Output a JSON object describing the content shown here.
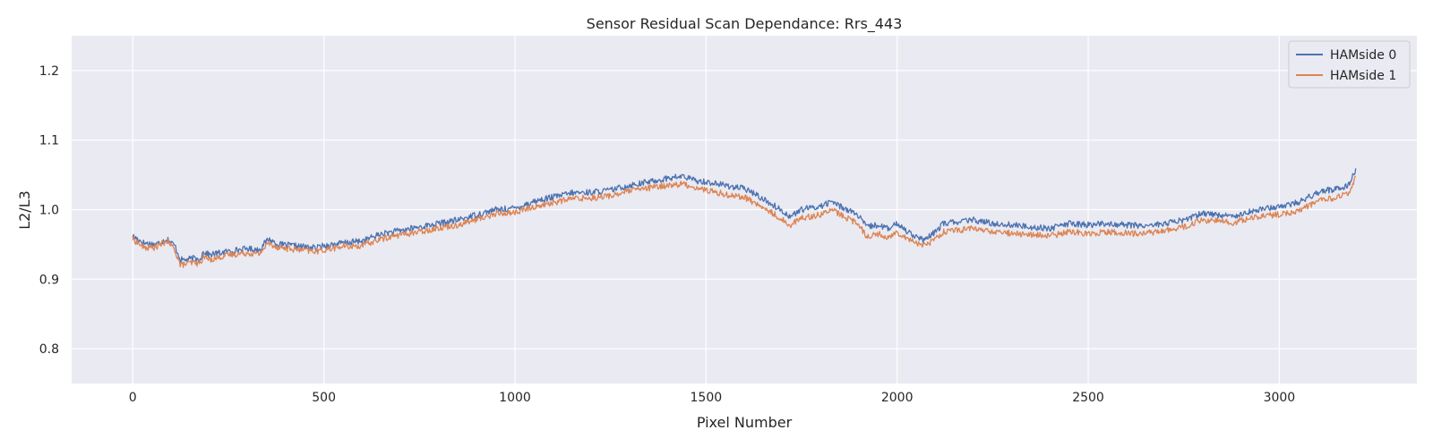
{
  "chart_data": {
    "type": "line",
    "title": "Sensor Residual Scan Dependance: Rrs_443",
    "xlabel": "Pixel Number",
    "ylabel": "L2/L3",
    "xlim": [
      -160,
      3360
    ],
    "ylim": [
      0.75,
      1.25
    ],
    "xticks": [
      0,
      500,
      1000,
      1500,
      2000,
      2500,
      3000
    ],
    "yticks": [
      0.8,
      0.9,
      1.0,
      1.1,
      1.2
    ],
    "grid": true,
    "legend_position": "top-right",
    "x_range": [
      0,
      3200
    ],
    "series": [
      {
        "name": "HAMside 0",
        "color": "#4c72b0",
        "points": [
          [
            0,
            0.962
          ],
          [
            30,
            0.952
          ],
          [
            60,
            0.95
          ],
          [
            90,
            0.958
          ],
          [
            110,
            0.948
          ],
          [
            125,
            0.928
          ],
          [
            140,
            0.928
          ],
          [
            160,
            0.93
          ],
          [
            175,
            0.928
          ],
          [
            185,
            0.94
          ],
          [
            200,
            0.935
          ],
          [
            250,
            0.94
          ],
          [
            300,
            0.944
          ],
          [
            330,
            0.942
          ],
          [
            355,
            0.958
          ],
          [
            380,
            0.95
          ],
          [
            420,
            0.948
          ],
          [
            480,
            0.945
          ],
          [
            500,
            0.948
          ],
          [
            550,
            0.952
          ],
          [
            600,
            0.955
          ],
          [
            650,
            0.965
          ],
          [
            700,
            0.97
          ],
          [
            750,
            0.975
          ],
          [
            800,
            0.98
          ],
          [
            850,
            0.985
          ],
          [
            900,
            0.993
          ],
          [
            950,
            1.0
          ],
          [
            1000,
            1.002
          ],
          [
            1050,
            1.012
          ],
          [
            1100,
            1.018
          ],
          [
            1150,
            1.024
          ],
          [
            1200,
            1.025
          ],
          [
            1250,
            1.028
          ],
          [
            1300,
            1.035
          ],
          [
            1350,
            1.04
          ],
          [
            1400,
            1.045
          ],
          [
            1440,
            1.048
          ],
          [
            1470,
            1.042
          ],
          [
            1500,
            1.04
          ],
          [
            1550,
            1.035
          ],
          [
            1600,
            1.03
          ],
          [
            1620,
            1.025
          ],
          [
            1650,
            1.015
          ],
          [
            1680,
            1.005
          ],
          [
            1700,
            0.998
          ],
          [
            1720,
            0.99
          ],
          [
            1750,
            1.0
          ],
          [
            1800,
            1.005
          ],
          [
            1830,
            1.012
          ],
          [
            1850,
            1.005
          ],
          [
            1880,
            0.998
          ],
          [
            1900,
            0.99
          ],
          [
            1920,
            0.975
          ],
          [
            1950,
            0.978
          ],
          [
            1980,
            0.972
          ],
          [
            2000,
            0.98
          ],
          [
            2030,
            0.968
          ],
          [
            2070,
            0.955
          ],
          [
            2100,
            0.968
          ],
          [
            2120,
            0.98
          ],
          [
            2150,
            0.982
          ],
          [
            2200,
            0.985
          ],
          [
            2250,
            0.98
          ],
          [
            2300,
            0.978
          ],
          [
            2350,
            0.975
          ],
          [
            2400,
            0.973
          ],
          [
            2450,
            0.98
          ],
          [
            2500,
            0.978
          ],
          [
            2550,
            0.98
          ],
          [
            2600,
            0.978
          ],
          [
            2650,
            0.977
          ],
          [
            2700,
            0.98
          ],
          [
            2750,
            0.985
          ],
          [
            2800,
            0.995
          ],
          [
            2850,
            0.992
          ],
          [
            2880,
            0.99
          ],
          [
            2900,
            0.995
          ],
          [
            2950,
            1.0
          ],
          [
            3000,
            1.005
          ],
          [
            3050,
            1.01
          ],
          [
            3100,
            1.025
          ],
          [
            3150,
            1.03
          ],
          [
            3180,
            1.035
          ],
          [
            3200,
            1.058
          ]
        ]
      },
      {
        "name": "HAMside 1",
        "color": "#dd8452",
        "points": [
          [
            0,
            0.958
          ],
          [
            30,
            0.945
          ],
          [
            60,
            0.946
          ],
          [
            90,
            0.955
          ],
          [
            110,
            0.942
          ],
          [
            125,
            0.92
          ],
          [
            140,
            0.922
          ],
          [
            160,
            0.924
          ],
          [
            175,
            0.922
          ],
          [
            185,
            0.933
          ],
          [
            200,
            0.928
          ],
          [
            250,
            0.935
          ],
          [
            300,
            0.938
          ],
          [
            330,
            0.936
          ],
          [
            355,
            0.952
          ],
          [
            380,
            0.946
          ],
          [
            420,
            0.943
          ],
          [
            480,
            0.94
          ],
          [
            500,
            0.942
          ],
          [
            550,
            0.947
          ],
          [
            600,
            0.948
          ],
          [
            650,
            0.958
          ],
          [
            700,
            0.964
          ],
          [
            750,
            0.968
          ],
          [
            800,
            0.974
          ],
          [
            850,
            0.978
          ],
          [
            900,
            0.986
          ],
          [
            950,
            0.994
          ],
          [
            1000,
            0.996
          ],
          [
            1050,
            1.004
          ],
          [
            1100,
            1.01
          ],
          [
            1150,
            1.016
          ],
          [
            1200,
            1.017
          ],
          [
            1250,
            1.02
          ],
          [
            1300,
            1.027
          ],
          [
            1350,
            1.031
          ],
          [
            1400,
            1.035
          ],
          [
            1440,
            1.037
          ],
          [
            1470,
            1.032
          ],
          [
            1500,
            1.028
          ],
          [
            1550,
            1.022
          ],
          [
            1600,
            1.018
          ],
          [
            1620,
            1.012
          ],
          [
            1650,
            1.002
          ],
          [
            1680,
            0.993
          ],
          [
            1700,
            0.985
          ],
          [
            1720,
            0.978
          ],
          [
            1750,
            0.988
          ],
          [
            1800,
            0.993
          ],
          [
            1830,
            1.0
          ],
          [
            1850,
            0.993
          ],
          [
            1880,
            0.985
          ],
          [
            1900,
            0.978
          ],
          [
            1920,
            0.962
          ],
          [
            1950,
            0.965
          ],
          [
            1980,
            0.96
          ],
          [
            2000,
            0.968
          ],
          [
            2030,
            0.958
          ],
          [
            2070,
            0.948
          ],
          [
            2100,
            0.958
          ],
          [
            2120,
            0.968
          ],
          [
            2150,
            0.97
          ],
          [
            2200,
            0.973
          ],
          [
            2250,
            0.968
          ],
          [
            2300,
            0.966
          ],
          [
            2350,
            0.964
          ],
          [
            2400,
            0.962
          ],
          [
            2450,
            0.968
          ],
          [
            2500,
            0.966
          ],
          [
            2550,
            0.968
          ],
          [
            2600,
            0.966
          ],
          [
            2650,
            0.966
          ],
          [
            2700,
            0.97
          ],
          [
            2750,
            0.975
          ],
          [
            2800,
            0.985
          ],
          [
            2850,
            0.983
          ],
          [
            2880,
            0.98
          ],
          [
            2900,
            0.985
          ],
          [
            2950,
            0.99
          ],
          [
            3000,
            0.993
          ],
          [
            3050,
            0.998
          ],
          [
            3100,
            1.012
          ],
          [
            3150,
            1.018
          ],
          [
            3180,
            1.022
          ],
          [
            3200,
            1.045
          ]
        ]
      }
    ]
  }
}
